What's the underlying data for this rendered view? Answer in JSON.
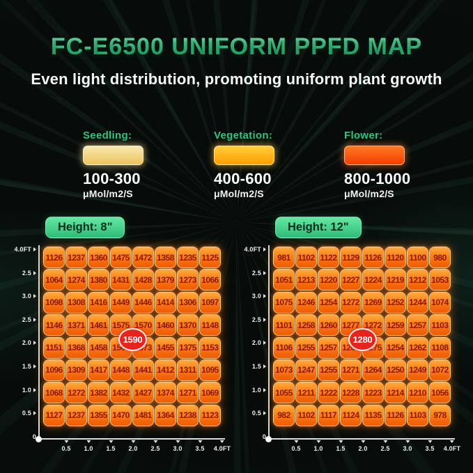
{
  "title": "FC-E6500 UNIFORM PPFD MAP",
  "subtitle": "Even light distribution, promoting uniform plant growth",
  "legend": {
    "items": [
      {
        "label": "Seedling:",
        "range": "100-300",
        "unit": "μMol/m2/S",
        "color_top": "#f8e8b0",
        "color_bottom": "#edc45c",
        "glow": "rgba(255,225,150,0.5)"
      },
      {
        "label": "Vegetation:",
        "range": "400-600",
        "unit": "μMol/m2/S",
        "color_top": "#ffce3c",
        "color_bottom": "#ff9d00",
        "glow": "rgba(255,190,70,0.5)"
      },
      {
        "label": "Flower:",
        "range": "800-1000",
        "unit": "μMol/m2/S",
        "color_top": "#ff7a24",
        "color_bottom": "#f53d00",
        "glow": "rgba(255,120,50,0.5)"
      }
    ]
  },
  "maps": [
    {
      "height_label": "Height: 8\"",
      "peak_label": "1590"
    },
    {
      "height_label": "Height: 12\"",
      "peak_label": "1280"
    }
  ],
  "colors": {
    "title_green": "#3fd68c",
    "legend_label_green": "#2ec57f",
    "badge_green_top": "#65e8a4",
    "badge_green_bottom": "#2dbc78",
    "badge_text": "#0c2e1c",
    "cell_text": "#8f1602",
    "peak_red": "#e6231d",
    "axis": "#dcdcdc",
    "background": "#070c0a"
  },
  "chart_data": [
    {
      "type": "heatmap",
      "title": "Height: 8\"",
      "unit": "μMol/m2/S",
      "xlabel": "FT",
      "ylabel": "FT",
      "x_ticks": [
        "0.5",
        "1.0",
        "1.5",
        "2.0",
        "2.5",
        "3.0",
        "3.5",
        "4.0FT"
      ],
      "y_ticks": [
        "4.0FT",
        "2.5",
        "3.0",
        "2.5",
        "2.0",
        "1.5",
        "1.0",
        "0.5",
        "0"
      ],
      "peak_annotation": 1590,
      "values": [
        [
          1126,
          1237,
          1360,
          1475,
          1472,
          1358,
          1235,
          1125
        ],
        [
          1064,
          1274,
          1380,
          1431,
          1428,
          1379,
          1273,
          1066
        ],
        [
          1098,
          1308,
          1416,
          1449,
          1446,
          1414,
          1306,
          1097
        ],
        [
          1146,
          1371,
          1461,
          1575,
          1570,
          1460,
          1370,
          1148
        ],
        [
          1151,
          1368,
          1458,
          1567,
          1573,
          1455,
          1375,
          1153
        ],
        [
          1096,
          1309,
          1417,
          1448,
          1441,
          1412,
          1311,
          1095
        ],
        [
          1068,
          1272,
          1382,
          1432,
          1427,
          1374,
          1271,
          1069
        ],
        [
          1127,
          1237,
          1355,
          1470,
          1481,
          1364,
          1238,
          1123
        ]
      ]
    },
    {
      "type": "heatmap",
      "title": "Height: 12\"",
      "unit": "μMol/m2/S",
      "xlabel": "FT",
      "ylabel": "FT",
      "x_ticks": [
        "0.5",
        "1.0",
        "1.5",
        "2.0",
        "2.5",
        "3.0",
        "3.5",
        "4.0FT"
      ],
      "y_ticks": [
        "4.0FT",
        "2.5",
        "3.0",
        "2.5",
        "2.0",
        "1.5",
        "1.0",
        "0.5",
        "0"
      ],
      "peak_annotation": 1280,
      "values": [
        [
          981,
          1102,
          1122,
          1129,
          1126,
          1120,
          1100,
          980
        ],
        [
          1051,
          1213,
          1220,
          1227,
          1224,
          1219,
          1212,
          1053
        ],
        [
          1075,
          1246,
          1254,
          1272,
          1269,
          1252,
          1244,
          1074
        ],
        [
          1101,
          1258,
          1260,
          1277,
          1272,
          1259,
          1257,
          1103
        ],
        [
          1106,
          1255,
          1257,
          1269,
          1275,
          1254,
          1262,
          1108
        ],
        [
          1073,
          1247,
          1255,
          1271,
          1264,
          1250,
          1249,
          1072
        ],
        [
          1055,
          1211,
          1222,
          1228,
          1223,
          1214,
          1210,
          1056
        ],
        [
          982,
          1102,
          1117,
          1124,
          1135,
          1126,
          1103,
          978
        ]
      ]
    }
  ]
}
